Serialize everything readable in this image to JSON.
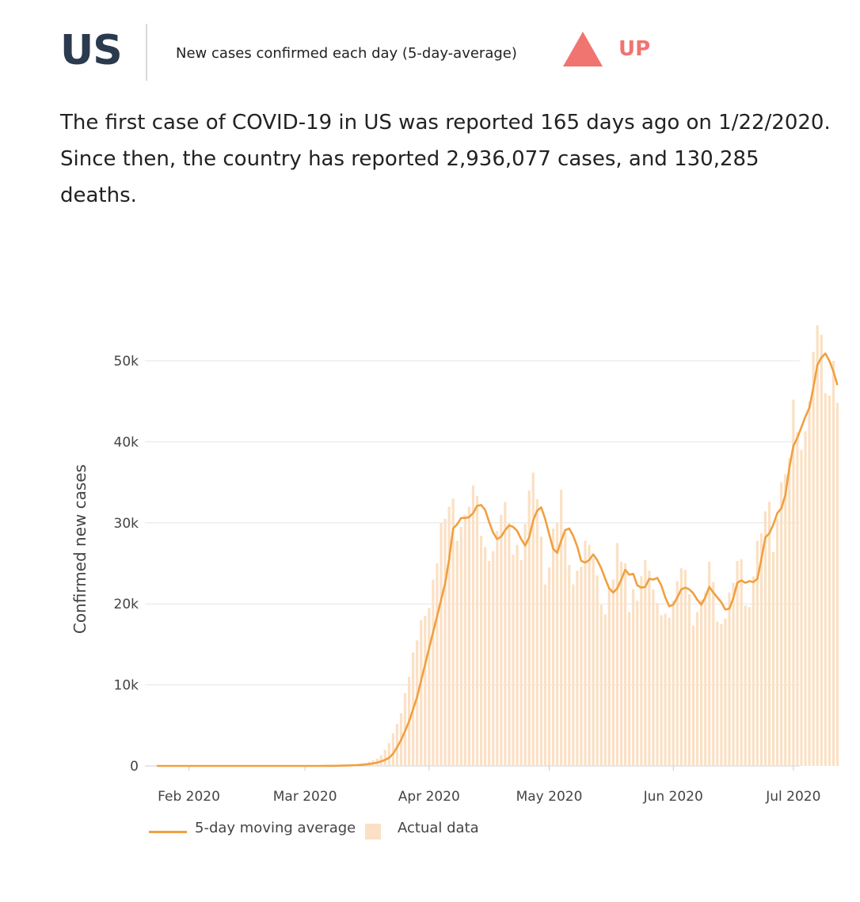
{
  "header": {
    "country": "US",
    "subtitle": "New cases confirmed each day (5-day-average)",
    "trend": "UP",
    "trend_color": "#f07470",
    "trend_icon": "triangle-up-icon"
  },
  "summary": {
    "line1": "The first case of COVID-19 in US was reported 165 days ago on 1/22/2020.",
    "line2": "Since then, the country has reported 2,936,077 cases, and 130,285",
    "line3": "deaths."
  },
  "legend": {
    "line_label": "5-day moving average",
    "bar_label": "Actual data"
  },
  "colors": {
    "line": "#f0a040",
    "bar": "#fbe0c4",
    "grid": "#e6e6e6",
    "text": "#444444"
  },
  "chart_data": {
    "type": "bar",
    "ylabel": "Confirmed new cases",
    "xlabel": "",
    "ylim": [
      0,
      55000
    ],
    "yticks": [
      {
        "value": 0,
        "label": "0"
      },
      {
        "value": 10000,
        "label": "10k"
      },
      {
        "value": 20000,
        "label": "20k"
      },
      {
        "value": 30000,
        "label": "30k"
      },
      {
        "value": 40000,
        "label": "40k"
      },
      {
        "value": 50000,
        "label": "50k"
      }
    ],
    "xticks": [
      {
        "date": "2020-02-01",
        "label": "Feb 2020"
      },
      {
        "date": "2020-03-01",
        "label": "Mar 2020"
      },
      {
        "date": "2020-04-01",
        "label": "Apr 2020"
      },
      {
        "date": "2020-05-01",
        "label": "May 2020"
      },
      {
        "date": "2020-06-01",
        "label": "Jun 2020"
      },
      {
        "date": "2020-07-01",
        "label": "Jul 2020"
      }
    ],
    "grid": true,
    "legend_position": "bottom-left",
    "x_start": "2020-01-22",
    "x_end": "2020-07-05",
    "series": [
      {
        "name": "Actual data",
        "type": "bar",
        "values": [
          1,
          0,
          1,
          0,
          1,
          0,
          0,
          0,
          0,
          1,
          0,
          1,
          0,
          0,
          0,
          0,
          0,
          0,
          0,
          0,
          0,
          0,
          0,
          0,
          0,
          0,
          0,
          0,
          0,
          0,
          0,
          0,
          0,
          0,
          0,
          0,
          0,
          0,
          0,
          0,
          2,
          3,
          5,
          10,
          15,
          20,
          30,
          50,
          70,
          90,
          120,
          150,
          200,
          300,
          400,
          500,
          700,
          900,
          1300,
          2000,
          2800,
          4000,
          5200,
          6500,
          9000,
          11000,
          14000,
          15500,
          18000,
          18500,
          19500,
          23000,
          25000,
          30000,
          30500,
          32000,
          33000,
          27800,
          29500,
          31000,
          32000,
          34600,
          33300,
          28400,
          27000,
          25300,
          26500,
          29000,
          31000,
          32600,
          30000,
          26100,
          27300,
          25400,
          29900,
          34000,
          36200,
          32900,
          28300,
          22400,
          24500,
          29300,
          30000,
          34100,
          28900,
          24800,
          22400,
          24100,
          24600,
          27800,
          27300,
          25600,
          23500,
          19900,
          18700,
          21900,
          23000,
          27500,
          25200,
          25000,
          19000,
          21800,
          20400,
          23400,
          25400,
          24100,
          21800,
          20100,
          18600,
          18800,
          18300,
          20400,
          22800,
          24400,
          24200,
          21200,
          17300,
          19000,
          20500,
          21400,
          25200,
          22700,
          17800,
          17500,
          18200,
          21400,
          22600,
          25300,
          25500,
          19800,
          19600,
          23400,
          27800,
          28700,
          31400,
          32600,
          26400,
          30500,
          35000,
          36000,
          38000,
          45200,
          41200,
          39000,
          41300,
          45000,
          51100,
          54400,
          53200,
          46000,
          45700,
          50000,
          44800
        ]
      },
      {
        "name": "5-day moving average",
        "type": "line",
        "values": [
          1,
          1,
          1,
          1,
          1,
          1,
          1,
          1,
          1,
          1,
          1,
          1,
          1,
          1,
          1,
          1,
          1,
          1,
          1,
          1,
          1,
          1,
          1,
          1,
          1,
          1,
          1,
          1,
          1,
          1,
          1,
          1,
          1,
          1,
          1,
          1,
          1,
          1,
          1,
          1,
          2,
          3,
          5,
          9,
          13,
          18,
          26,
          40,
          56,
          74,
          96,
          126,
          166,
          234,
          314,
          400,
          560,
          740,
          1000,
          1500,
          2300,
          3200,
          4300,
          5500,
          7000,
          8500,
          10500,
          12500,
          14500,
          16500,
          18500,
          20500,
          22500,
          25500,
          29300,
          29800,
          30600,
          30600,
          30700,
          31200,
          32100,
          32200,
          31600,
          30100,
          28800,
          28000,
          28300,
          29100,
          29700,
          29500,
          29000,
          28000,
          27200,
          28200,
          30300,
          31500,
          31900,
          30500,
          28600,
          26800,
          26300,
          27800,
          29100,
          29300,
          28400,
          27100,
          25300,
          25100,
          25400,
          26100,
          25400,
          24400,
          23100,
          21900,
          21400,
          21900,
          23000,
          24200,
          23600,
          23700,
          22300,
          22000,
          22100,
          23100,
          23000,
          23200,
          22300,
          20800,
          19700,
          19900,
          20800,
          21800,
          22000,
          21800,
          21300,
          20500,
          19900,
          20800,
          22100,
          21400,
          20800,
          20200,
          19300,
          19400,
          20700,
          22600,
          22900,
          22600,
          22800,
          22700,
          23100,
          25500,
          28200,
          28700,
          29800,
          31200,
          31800,
          33400,
          36800,
          39500,
          40500,
          41800,
          43100,
          44200,
          46700,
          49500,
          50400,
          50900,
          50000,
          48700,
          47000
        ]
      }
    ]
  }
}
